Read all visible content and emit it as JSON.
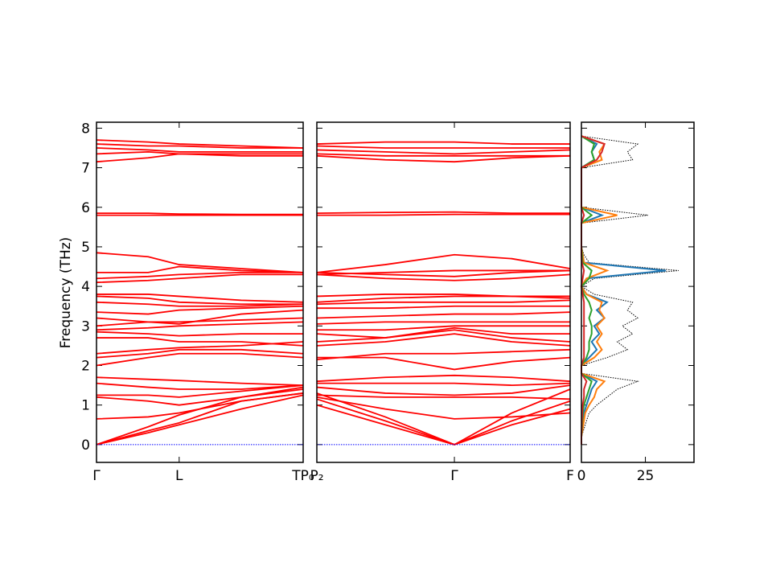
{
  "chart_data": [
    {
      "type": "line",
      "ylabel": "Frequency (THz)",
      "ylim": [
        -0.45,
        8.15
      ],
      "yticks": [
        0,
        1,
        2,
        3,
        4,
        5,
        6,
        7,
        8
      ],
      "xlim": [
        0,
        1
      ],
      "x": [
        0,
        0.25,
        0.4,
        0.7,
        1.0
      ],
      "xticks": [
        {
          "value": 0,
          "label": "Γ"
        },
        {
          "value": 0.4,
          "label": "L"
        },
        {
          "value": 1.0,
          "label": "TP₀"
        }
      ],
      "series": [
        {
          "color": "#ff0000",
          "values": [
            0,
            0.3,
            0.5,
            0.9,
            1.25
          ]
        },
        {
          "color": "#ff0000",
          "values": [
            0,
            0.35,
            0.55,
            1.1,
            1.3
          ]
        },
        {
          "color": "#ff0000",
          "values": [
            0,
            0.45,
            0.75,
            1.2,
            1.4
          ]
        },
        {
          "color": "#ff0000",
          "values": [
            0.65,
            0.7,
            0.8,
            1.1,
            1.3
          ]
        },
        {
          "color": "#ff0000",
          "values": [
            1.2,
            1.1,
            1.0,
            1.2,
            1.45
          ]
        },
        {
          "color": "#ff0000",
          "values": [
            1.25,
            1.25,
            1.2,
            1.35,
            1.5
          ]
        },
        {
          "color": "#ff0000",
          "values": [
            1.55,
            1.45,
            1.4,
            1.4,
            1.5
          ]
        },
        {
          "color": "#ff0000",
          "values": [
            1.7,
            1.65,
            1.62,
            1.55,
            1.5
          ]
        },
        {
          "color": "#ff0000",
          "values": [
            2.0,
            2.2,
            2.3,
            2.3,
            2.2
          ]
        },
        {
          "color": "#ff0000",
          "values": [
            2.2,
            2.3,
            2.4,
            2.4,
            2.3
          ]
        },
        {
          "color": "#ff0000",
          "values": [
            2.3,
            2.4,
            2.45,
            2.5,
            2.6
          ]
        },
        {
          "color": "#ff0000",
          "values": [
            2.7,
            2.7,
            2.6,
            2.6,
            2.5
          ]
        },
        {
          "color": "#ff0000",
          "values": [
            2.85,
            2.8,
            2.75,
            2.8,
            2.8
          ]
        },
        {
          "color": "#ff0000",
          "values": [
            2.9,
            2.95,
            3.0,
            3.05,
            3.1
          ]
        },
        {
          "color": "#ff0000",
          "values": [
            3.0,
            3.1,
            3.1,
            3.15,
            3.2
          ]
        },
        {
          "color": "#ff0000",
          "values": [
            3.2,
            3.1,
            3.05,
            3.3,
            3.4
          ]
        },
        {
          "color": "#ff0000",
          "values": [
            3.35,
            3.3,
            3.4,
            3.45,
            3.5
          ]
        },
        {
          "color": "#ff0000",
          "values": [
            3.6,
            3.55,
            3.5,
            3.5,
            3.55
          ]
        },
        {
          "color": "#ff0000",
          "values": [
            3.75,
            3.7,
            3.6,
            3.55,
            3.55
          ]
        },
        {
          "color": "#ff0000",
          "values": [
            3.8,
            3.8,
            3.75,
            3.65,
            3.6
          ]
        },
        {
          "color": "#ff0000",
          "values": [
            4.1,
            4.15,
            4.2,
            4.3,
            4.3
          ]
        },
        {
          "color": "#ff0000",
          "values": [
            4.2,
            4.25,
            4.3,
            4.35,
            4.35
          ]
        },
        {
          "color": "#ff0000",
          "values": [
            4.35,
            4.35,
            4.5,
            4.4,
            4.35
          ]
        },
        {
          "color": "#ff0000",
          "values": [
            4.85,
            4.75,
            4.55,
            4.45,
            4.35
          ]
        },
        {
          "color": "#ff0000",
          "values": [
            5.8,
            5.8,
            5.8,
            5.8,
            5.8
          ]
        },
        {
          "color": "#ff0000",
          "values": [
            5.85,
            5.85,
            5.83,
            5.82,
            5.82
          ]
        },
        {
          "color": "#ff0000",
          "values": [
            7.15,
            7.25,
            7.35,
            7.3,
            7.3
          ]
        },
        {
          "color": "#ff0000",
          "values": [
            7.35,
            7.4,
            7.35,
            7.35,
            7.35
          ]
        },
        {
          "color": "#ff0000",
          "values": [
            7.5,
            7.45,
            7.4,
            7.4,
            7.4
          ]
        },
        {
          "color": "#ff0000",
          "values": [
            7.6,
            7.55,
            7.55,
            7.5,
            7.5
          ]
        },
        {
          "color": "#ff0000",
          "values": [
            7.7,
            7.65,
            7.6,
            7.55,
            7.5
          ]
        },
        {
          "color": "#0000ff",
          "dash": "dotted",
          "values": [
            0,
            0,
            0,
            0,
            0
          ]
        }
      ]
    },
    {
      "type": "line",
      "xlim": [
        0,
        1
      ],
      "x": [
        0,
        0.27,
        0.543,
        0.77,
        1.0
      ],
      "xticks": [
        {
          "value": 0,
          "label": "P₂"
        },
        {
          "value": 0.543,
          "label": "Γ"
        },
        {
          "value": 1.0,
          "label": "F"
        }
      ],
      "series": [
        {
          "color": "#ff0000",
          "values": [
            1.0,
            0.5,
            0,
            0.5,
            0.9
          ]
        },
        {
          "color": "#ff0000",
          "values": [
            1.15,
            0.6,
            0,
            0.6,
            1.1
          ]
        },
        {
          "color": "#ff0000",
          "values": [
            1.3,
            0.7,
            0,
            0.8,
            1.4
          ]
        },
        {
          "color": "#ff0000",
          "values": [
            1.2,
            0.9,
            0.65,
            0.7,
            0.8
          ]
        },
        {
          "color": "#ff0000",
          "values": [
            1.25,
            1.2,
            1.2,
            1.2,
            1.15
          ]
        },
        {
          "color": "#ff0000",
          "values": [
            1.45,
            1.3,
            1.25,
            1.3,
            1.5
          ]
        },
        {
          "color": "#ff0000",
          "values": [
            1.55,
            1.55,
            1.55,
            1.5,
            1.55
          ]
        },
        {
          "color": "#ff0000",
          "values": [
            1.6,
            1.7,
            1.75,
            1.7,
            1.6
          ]
        },
        {
          "color": "#ff0000",
          "values": [
            2.2,
            2.2,
            1.9,
            2.1,
            2.2
          ]
        },
        {
          "color": "#ff0000",
          "values": [
            2.15,
            2.3,
            2.3,
            2.35,
            2.4
          ]
        },
        {
          "color": "#ff0000",
          "values": [
            2.5,
            2.6,
            2.8,
            2.6,
            2.5
          ]
        },
        {
          "color": "#ff0000",
          "values": [
            2.6,
            2.7,
            2.9,
            2.7,
            2.6
          ]
        },
        {
          "color": "#ff0000",
          "values": [
            2.8,
            2.7,
            2.95,
            2.8,
            2.8
          ]
        },
        {
          "color": "#ff0000",
          "values": [
            2.9,
            2.9,
            3.0,
            3.0,
            3.0
          ]
        },
        {
          "color": "#ff0000",
          "values": [
            3.05,
            3.1,
            3.1,
            3.1,
            3.1
          ]
        },
        {
          "color": "#ff0000",
          "values": [
            3.2,
            3.25,
            3.3,
            3.3,
            3.35
          ]
        },
        {
          "color": "#ff0000",
          "values": [
            3.45,
            3.45,
            3.5,
            3.5,
            3.5
          ]
        },
        {
          "color": "#ff0000",
          "values": [
            3.55,
            3.6,
            3.6,
            3.6,
            3.65
          ]
        },
        {
          "color": "#ff0000",
          "values": [
            3.6,
            3.7,
            3.75,
            3.75,
            3.7
          ]
        },
        {
          "color": "#ff0000",
          "values": [
            3.75,
            3.8,
            3.8,
            3.75,
            3.75
          ]
        },
        {
          "color": "#ff0000",
          "values": [
            4.3,
            4.2,
            4.15,
            4.2,
            4.3
          ]
        },
        {
          "color": "#ff0000",
          "values": [
            4.35,
            4.3,
            4.25,
            4.35,
            4.4
          ]
        },
        {
          "color": "#ff0000",
          "values": [
            4.35,
            4.55,
            4.8,
            4.7,
            4.45
          ]
        },
        {
          "color": "#ff0000",
          "values": [
            4.3,
            4.35,
            4.4,
            4.4,
            4.4
          ]
        },
        {
          "color": "#ff0000",
          "values": [
            5.8,
            5.8,
            5.82,
            5.82,
            5.82
          ]
        },
        {
          "color": "#ff0000",
          "values": [
            5.85,
            5.87,
            5.88,
            5.85,
            5.85
          ]
        },
        {
          "color": "#ff0000",
          "values": [
            7.3,
            7.2,
            7.15,
            7.25,
            7.3
          ]
        },
        {
          "color": "#ff0000",
          "values": [
            7.35,
            7.3,
            7.3,
            7.3,
            7.3
          ]
        },
        {
          "color": "#ff0000",
          "values": [
            7.45,
            7.4,
            7.35,
            7.4,
            7.45
          ]
        },
        {
          "color": "#ff0000",
          "values": [
            7.55,
            7.5,
            7.5,
            7.5,
            7.5
          ]
        },
        {
          "color": "#ff0000",
          "values": [
            7.6,
            7.65,
            7.65,
            7.6,
            7.6
          ]
        },
        {
          "color": "#0000ff",
          "dash": "dotted",
          "values": [
            0,
            0,
            0,
            0,
            0
          ]
        }
      ]
    },
    {
      "type": "dos",
      "xlim": [
        0,
        44
      ],
      "xticks": [
        0,
        25
      ],
      "y": [
        0,
        0.2,
        0.4,
        0.6,
        0.8,
        1.0,
        1.2,
        1.4,
        1.6,
        1.8,
        2.0,
        2.2,
        2.4,
        2.6,
        2.8,
        3.0,
        3.2,
        3.4,
        3.6,
        3.8,
        4.0,
        4.2,
        4.4,
        4.6,
        4.8,
        5.0,
        5.2,
        5.4,
        5.6,
        5.8,
        6.0,
        6.2,
        6.4,
        6.6,
        6.8,
        7.0,
        7.2,
        7.4,
        7.6,
        7.8
      ],
      "series": [
        {
          "color": "#000000",
          "dash": "dotted",
          "values": [
            0,
            0,
            1,
            2,
            3,
            6,
            10,
            14,
            22,
            0,
            0,
            10,
            18,
            14,
            20,
            16,
            22,
            18,
            20,
            5,
            0,
            5,
            38,
            3,
            1,
            0,
            0,
            0,
            0,
            26,
            0,
            0,
            0,
            0,
            0,
            0,
            20,
            18,
            22,
            0
          ]
        },
        {
          "color": "#1f77b4",
          "values": [
            0,
            0,
            0.3,
            0.6,
            1,
            2,
            3,
            4,
            6,
            0,
            0,
            3,
            6,
            4,
            7,
            5,
            9,
            6,
            10,
            2,
            0,
            2,
            33,
            1,
            0.5,
            0,
            0,
            0,
            0,
            8,
            0,
            0,
            0,
            0,
            0,
            0,
            5,
            4,
            6,
            0
          ]
        },
        {
          "color": "#ff7f0e",
          "values": [
            0,
            0,
            0.5,
            1,
            1.5,
            3,
            5,
            6,
            9,
            0,
            0,
            5,
            8,
            6,
            8,
            6,
            9,
            7,
            8,
            2,
            0,
            2,
            10,
            1,
            0.5,
            0,
            0,
            0,
            0,
            14,
            0,
            0,
            0,
            0,
            0,
            0,
            8,
            7,
            9,
            0
          ]
        },
        {
          "color": "#2ca02c",
          "values": [
            0,
            0,
            0.2,
            0.4,
            0.5,
            1,
            2,
            3,
            4,
            0,
            0,
            2,
            3,
            3,
            4,
            4,
            3,
            4,
            3,
            1,
            0,
            3,
            4,
            0.5,
            0.2,
            0,
            0,
            0,
            0,
            4,
            0,
            0,
            0,
            0,
            0,
            0,
            5,
            4,
            5,
            0
          ]
        },
        {
          "color": "#d62728",
          "values": [
            0,
            0,
            0.1,
            0.2,
            0.3,
            0.5,
            1,
            1,
            2,
            0,
            0,
            1,
            1,
            1,
            1,
            1,
            1,
            1,
            1,
            0.5,
            0,
            0.5,
            1,
            0.2,
            0,
            0,
            0,
            0,
            0,
            1,
            0,
            0,
            0,
            0,
            0,
            0,
            6,
            8,
            9,
            0
          ]
        }
      ]
    }
  ]
}
